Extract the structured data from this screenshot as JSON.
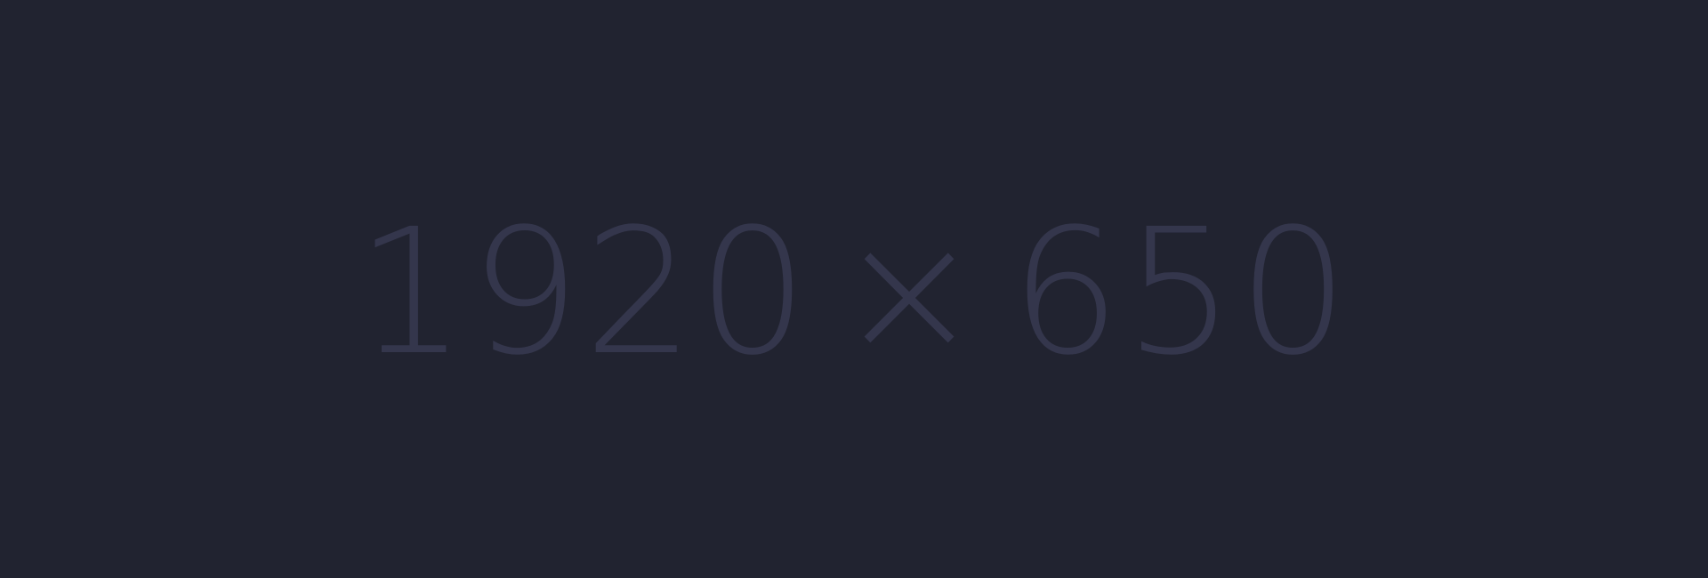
{
  "placeholder": {
    "width_text": "1920",
    "separator": "×",
    "height_text": "650",
    "colors": {
      "background": "#212330",
      "text": "#34364c"
    }
  }
}
